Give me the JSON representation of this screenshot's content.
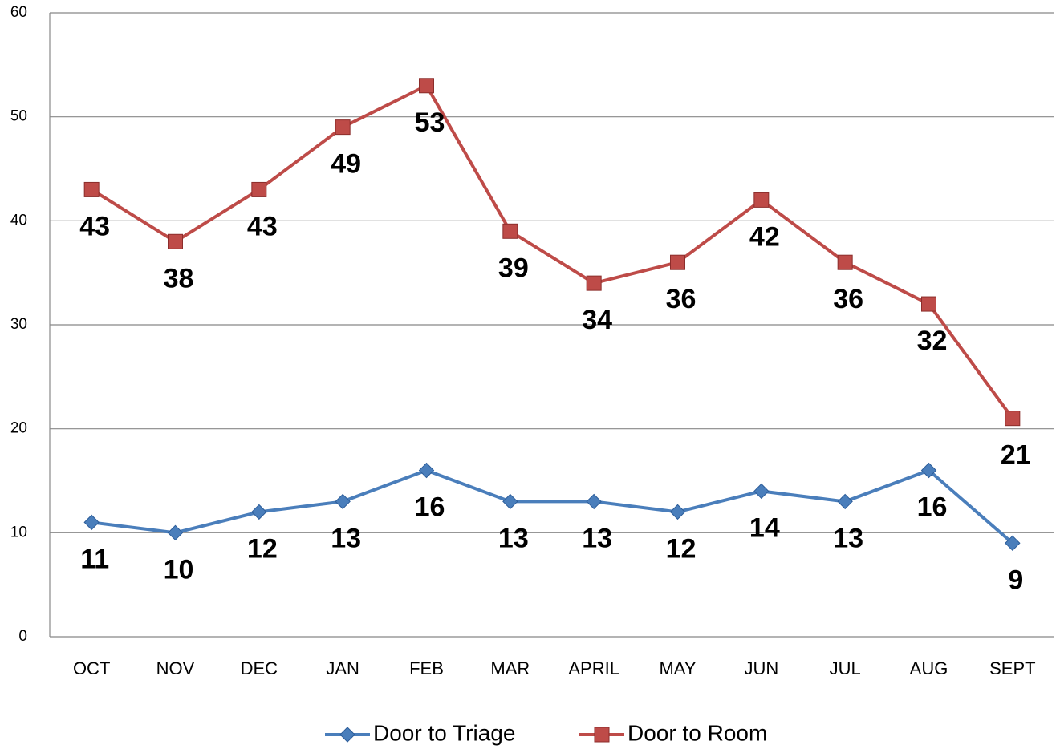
{
  "chart_data": {
    "type": "line",
    "categories": [
      "OCT",
      "NOV",
      "DEC",
      "JAN",
      "FEB",
      "MAR",
      "APRIL",
      "MAY",
      "JUN",
      "JUL",
      "AUG",
      "SEPT"
    ],
    "series": [
      {
        "name": "Door to Triage",
        "color": "#4a7ebb",
        "marker": "diamond",
        "values": [
          11,
          10,
          12,
          13,
          16,
          13,
          13,
          12,
          14,
          13,
          16,
          9
        ]
      },
      {
        "name": "Door to Room",
        "color": "#be4b48",
        "marker": "square",
        "values": [
          43,
          38,
          43,
          49,
          53,
          39,
          34,
          36,
          42,
          36,
          32,
          21
        ]
      }
    ],
    "ylim": [
      0,
      60
    ],
    "yticks": [
      0,
      10,
      20,
      30,
      40,
      50,
      60
    ],
    "grid": true,
    "legend": "bottom"
  }
}
